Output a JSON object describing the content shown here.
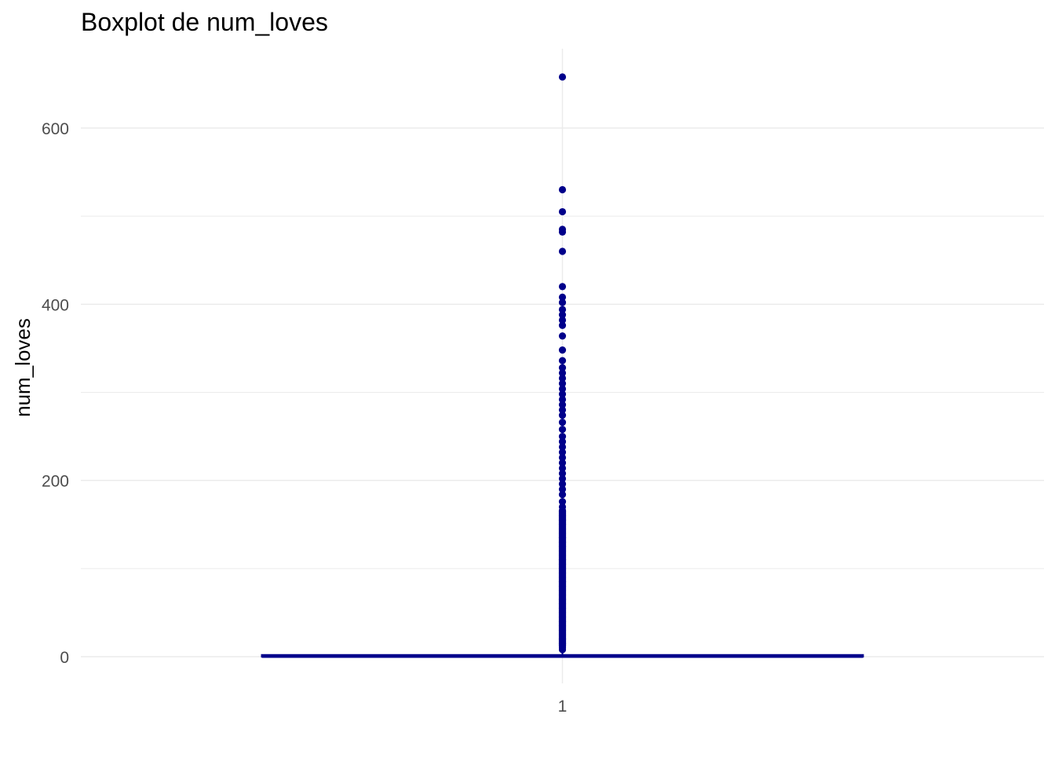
{
  "chart_data": {
    "type": "box",
    "title": "Boxplot de num_loves",
    "xlabel": "",
    "ylabel": "num_loves",
    "categories": [
      "1"
    ],
    "y_ticks": [
      0,
      200,
      400,
      600
    ],
    "ylim": [
      -30,
      690
    ],
    "grid": true,
    "legend": "none",
    "box": {
      "category": "1",
      "min": 0,
      "q1": 0,
      "median": 0,
      "q3": 2,
      "max": 4
    },
    "outliers": [
      658,
      530,
      505,
      485,
      482,
      460,
      420,
      408,
      402,
      394,
      388,
      382,
      376,
      364,
      348,
      336,
      328,
      322,
      316,
      310,
      304,
      298,
      292,
      286,
      280,
      274,
      266,
      258,
      250,
      244,
      238,
      232,
      226,
      220,
      214,
      208,
      202,
      196,
      190,
      184,
      176,
      170,
      165,
      160,
      155,
      150,
      145,
      140,
      135,
      130,
      125,
      120,
      115,
      110,
      105,
      100,
      95,
      90,
      85,
      80,
      75,
      70,
      65,
      60,
      55,
      50,
      45,
      40,
      35,
      30,
      25,
      20,
      15,
      12,
      10,
      8
    ],
    "colors": {
      "box_fill": "#00008B",
      "box_outline": "#00008B",
      "outlier": "#00008B",
      "grid": "#ebebeb",
      "tick_text": "#4d4d4d",
      "axis_text": "#000000"
    }
  }
}
